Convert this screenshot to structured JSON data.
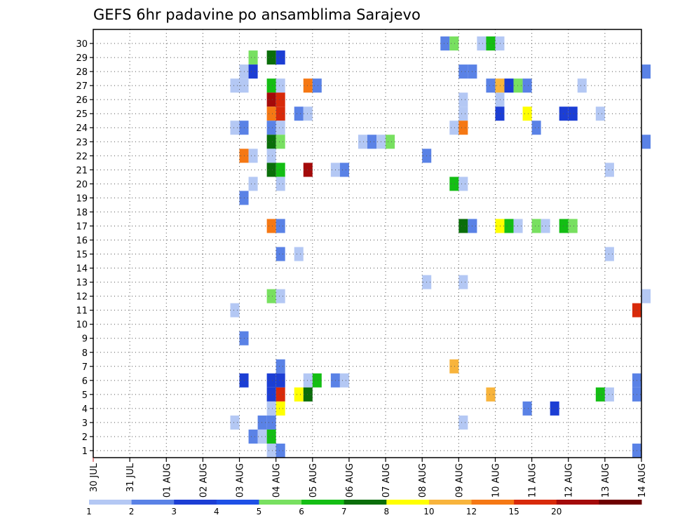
{
  "chart_data": {
    "type": "heatmap",
    "title": "GEFS 6hr padavine po ansamblima Sarajevo",
    "x_start": "30 JUL",
    "x_step_hours": 6,
    "x_ticks": [
      "30 JUL",
      "31 JUL",
      "01 AUG",
      "02 AUG",
      "03 AUG",
      "04 AUG",
      "05 AUG",
      "06 AUG",
      "07 AUG",
      "08 AUG",
      "09 AUG",
      "10 AUG",
      "11 AUG",
      "12 AUG",
      "13 AUG",
      "14 AUG"
    ],
    "y_ticks": [
      "1",
      "2",
      "3",
      "4",
      "5",
      "6",
      "7",
      "8",
      "9",
      "10",
      "11",
      "12",
      "13",
      "14",
      "15",
      "16",
      "17",
      "18",
      "19",
      "20",
      "21",
      "22",
      "23",
      "24",
      "25",
      "26",
      "27",
      "28",
      "29",
      "30"
    ],
    "ylabel": "",
    "xlabel": "",
    "grid": true,
    "colorbar": {
      "tick_labels": [
        "1",
        "2",
        "3",
        "4",
        "5",
        "6",
        "7",
        "8",
        "10",
        "12",
        "15",
        "20"
      ],
      "colors": [
        "#b4c8f4",
        "#5a82e6",
        "#1c3ed4",
        "#1e50e6",
        "#78e060",
        "#14be14",
        "#0a6e0a",
        "#ffff00",
        "#f8b43c",
        "#f57814",
        "#d82a0a",
        "#a40a0a",
        "#6e0000"
      ]
    },
    "cells": [
      {
        "member": 30,
        "step": 42,
        "value": 1.5
      },
      {
        "member": 30,
        "step": 43,
        "value": 6
      },
      {
        "member": 30,
        "step": 44,
        "value": 1
      },
      {
        "member": 30,
        "step": 38,
        "value": 2
      },
      {
        "member": 30,
        "step": 39,
        "value": 5
      },
      {
        "member": 29,
        "step": 17,
        "value": 5
      },
      {
        "member": 29,
        "step": 19,
        "value": 7
      },
      {
        "member": 29,
        "step": 20,
        "value": 3
      },
      {
        "member": 28,
        "step": 16,
        "value": 1
      },
      {
        "member": 28,
        "step": 17,
        "value": 3
      },
      {
        "member": 28,
        "step": 40,
        "value": 2
      },
      {
        "member": 28,
        "step": 41,
        "value": 2
      },
      {
        "member": 28,
        "step": 60,
        "value": 2
      },
      {
        "member": 27,
        "step": 15,
        "value": 1
      },
      {
        "member": 27,
        "step": 16,
        "value": 1
      },
      {
        "member": 27,
        "step": 19,
        "value": 6
      },
      {
        "member": 27,
        "step": 20,
        "value": 1
      },
      {
        "member": 27,
        "step": 23,
        "value": 12
      },
      {
        "member": 27,
        "step": 24,
        "value": 2
      },
      {
        "member": 27,
        "step": 43,
        "value": 2
      },
      {
        "member": 27,
        "step": 44,
        "value": 10
      },
      {
        "member": 27,
        "step": 45,
        "value": 3
      },
      {
        "member": 27,
        "step": 46,
        "value": 5
      },
      {
        "member": 27,
        "step": 47,
        "value": 2
      },
      {
        "member": 27,
        "step": 53,
        "value": 1
      },
      {
        "member": 26,
        "step": 19,
        "value": 20
      },
      {
        "member": 26,
        "step": 20,
        "value": 15
      },
      {
        "member": 26,
        "step": 40,
        "value": 1
      },
      {
        "member": 26,
        "step": 44,
        "value": 1
      },
      {
        "member": 25,
        "step": 19,
        "value": 12
      },
      {
        "member": 25,
        "step": 20,
        "value": 15
      },
      {
        "member": 25,
        "step": 22,
        "value": 2
      },
      {
        "member": 25,
        "step": 23,
        "value": 1
      },
      {
        "member": 25,
        "step": 40,
        "value": 1
      },
      {
        "member": 25,
        "step": 44,
        "value": 3
      },
      {
        "member": 25,
        "step": 47,
        "value": 8
      },
      {
        "member": 25,
        "step": 51,
        "value": 3
      },
      {
        "member": 25,
        "step": 52,
        "value": 3
      },
      {
        "member": 25,
        "step": 55,
        "value": 1
      },
      {
        "member": 24,
        "step": 15,
        "value": 1
      },
      {
        "member": 24,
        "step": 16,
        "value": 2
      },
      {
        "member": 24,
        "step": 19,
        "value": 2
      },
      {
        "member": 24,
        "step": 20,
        "value": 1
      },
      {
        "member": 24,
        "step": 39,
        "value": 1
      },
      {
        "member": 24,
        "step": 40,
        "value": 12
      },
      {
        "member": 24,
        "step": 48,
        "value": 2
      },
      {
        "member": 23,
        "step": 19,
        "value": 7
      },
      {
        "member": 23,
        "step": 20,
        "value": 5
      },
      {
        "member": 23,
        "step": 29,
        "value": 1
      },
      {
        "member": 23,
        "step": 30,
        "value": 2
      },
      {
        "member": 23,
        "step": 31,
        "value": 1
      },
      {
        "member": 23,
        "step": 32,
        "value": 5
      },
      {
        "member": 23,
        "step": 60,
        "value": 2
      },
      {
        "member": 22,
        "step": 16,
        "value": 12
      },
      {
        "member": 22,
        "step": 17,
        "value": 1
      },
      {
        "member": 22,
        "step": 19,
        "value": 1
      },
      {
        "member": 22,
        "step": 36,
        "value": 2
      },
      {
        "member": 21,
        "step": 19,
        "value": 7
      },
      {
        "member": 21,
        "step": 20,
        "value": 6
      },
      {
        "member": 21,
        "step": 23,
        "value": 20
      },
      {
        "member": 21,
        "step": 26,
        "value": 1
      },
      {
        "member": 21,
        "step": 27,
        "value": 2
      },
      {
        "member": 21,
        "step": 56,
        "value": 1
      },
      {
        "member": 20,
        "step": 17,
        "value": 1
      },
      {
        "member": 20,
        "step": 20,
        "value": 1
      },
      {
        "member": 20,
        "step": 39,
        "value": 6
      },
      {
        "member": 20,
        "step": 40,
        "value": 1
      },
      {
        "member": 19,
        "step": 16,
        "value": 2
      },
      {
        "member": 17,
        "step": 19,
        "value": 12
      },
      {
        "member": 17,
        "step": 20,
        "value": 2
      },
      {
        "member": 17,
        "step": 40,
        "value": 7
      },
      {
        "member": 17,
        "step": 41,
        "value": 2
      },
      {
        "member": 17,
        "step": 44,
        "value": 8
      },
      {
        "member": 17,
        "step": 45,
        "value": 6
      },
      {
        "member": 17,
        "step": 46,
        "value": 1
      },
      {
        "member": 17,
        "step": 48,
        "value": 5
      },
      {
        "member": 17,
        "step": 49,
        "value": 1
      },
      {
        "member": 17,
        "step": 51,
        "value": 6
      },
      {
        "member": 17,
        "step": 52,
        "value": 5
      },
      {
        "member": 15,
        "step": 20,
        "value": 2
      },
      {
        "member": 15,
        "step": 22,
        "value": 1
      },
      {
        "member": 15,
        "step": 56,
        "value": 1
      },
      {
        "member": 13,
        "step": 36,
        "value": 1
      },
      {
        "member": 13,
        "step": 40,
        "value": 1
      },
      {
        "member": 12,
        "step": 19,
        "value": 5
      },
      {
        "member": 12,
        "step": 20,
        "value": 1
      },
      {
        "member": 12,
        "step": 60,
        "value": 1
      },
      {
        "member": 11,
        "step": 15,
        "value": 1
      },
      {
        "member": 11,
        "step": 59,
        "value": 15
      },
      {
        "member": 9,
        "step": 16,
        "value": 2
      },
      {
        "member": 7,
        "step": 20,
        "value": 2
      },
      {
        "member": 7,
        "step": 39,
        "value": 10
      },
      {
        "member": 6,
        "step": 16,
        "value": 3
      },
      {
        "member": 6,
        "step": 19,
        "value": 3
      },
      {
        "member": 6,
        "step": 20,
        "value": 3
      },
      {
        "member": 6,
        "step": 23,
        "value": 1
      },
      {
        "member": 6,
        "step": 24,
        "value": 6
      },
      {
        "member": 6,
        "step": 26,
        "value": 2
      },
      {
        "member": 6,
        "step": 27,
        "value": 1
      },
      {
        "member": 6,
        "step": 59,
        "value": 2
      },
      {
        "member": 5,
        "step": 19,
        "value": 3
      },
      {
        "member": 5,
        "step": 20,
        "value": 15
      },
      {
        "member": 5,
        "step": 22,
        "value": 8
      },
      {
        "member": 5,
        "step": 23,
        "value": 7
      },
      {
        "member": 5,
        "step": 43,
        "value": 10
      },
      {
        "member": 5,
        "step": 55,
        "value": 6
      },
      {
        "member": 5,
        "step": 56,
        "value": 1
      },
      {
        "member": 5,
        "step": 59,
        "value": 2
      },
      {
        "member": 4,
        "step": 19,
        "value": 1
      },
      {
        "member": 4,
        "step": 20,
        "value": 8
      },
      {
        "member": 4,
        "step": 47,
        "value": 2
      },
      {
        "member": 4,
        "step": 50,
        "value": 3
      },
      {
        "member": 3,
        "step": 15,
        "value": 1
      },
      {
        "member": 3,
        "step": 18,
        "value": 2
      },
      {
        "member": 3,
        "step": 19,
        "value": 2
      },
      {
        "member": 3,
        "step": 40,
        "value": 1
      },
      {
        "member": 2,
        "step": 17,
        "value": 2
      },
      {
        "member": 2,
        "step": 18,
        "value": 1
      },
      {
        "member": 2,
        "step": 19,
        "value": 6
      },
      {
        "member": 1,
        "step": 19,
        "value": 1
      },
      {
        "member": 1,
        "step": 20,
        "value": 2
      },
      {
        "member": 1,
        "step": 59,
        "value": 2
      }
    ]
  }
}
